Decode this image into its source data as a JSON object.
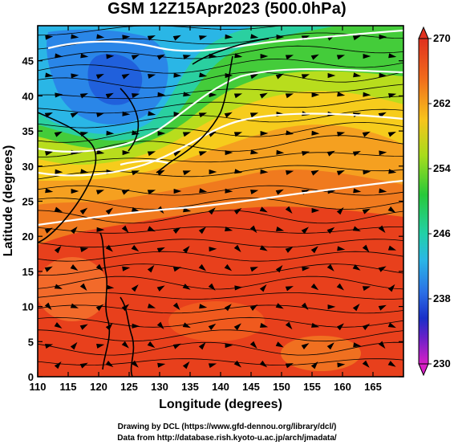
{
  "title": "GSM 12Z15Apr2023 (500.0hPa)",
  "map": {
    "xlabel": "Longitude (degrees)",
    "ylabel": "Latitude  (degrees)",
    "lon_range": [
      110,
      170
    ],
    "lat_range": [
      0,
      50
    ],
    "x_ticks": [
      "110",
      "115",
      "120",
      "125",
      "130",
      "135",
      "140",
      "145",
      "150",
      "155",
      "160",
      "165"
    ],
    "y_ticks": [
      "0",
      "5",
      "10",
      "15",
      "20",
      "25",
      "30",
      "35",
      "40",
      "45"
    ],
    "field": "shaded contour with streamlines and white contour lines"
  },
  "colorbar": {
    "labels": [
      "270",
      "262",
      "254",
      "246",
      "238",
      "230"
    ],
    "min": 230,
    "max": 270
  },
  "credits": {
    "line1": "Drawing by DCL (https://www.gfd-dennou.org/library/dcl/)",
    "line2": "Data from http://database.rish.kyoto-u.ac.jp/arch/jmadata/"
  }
}
